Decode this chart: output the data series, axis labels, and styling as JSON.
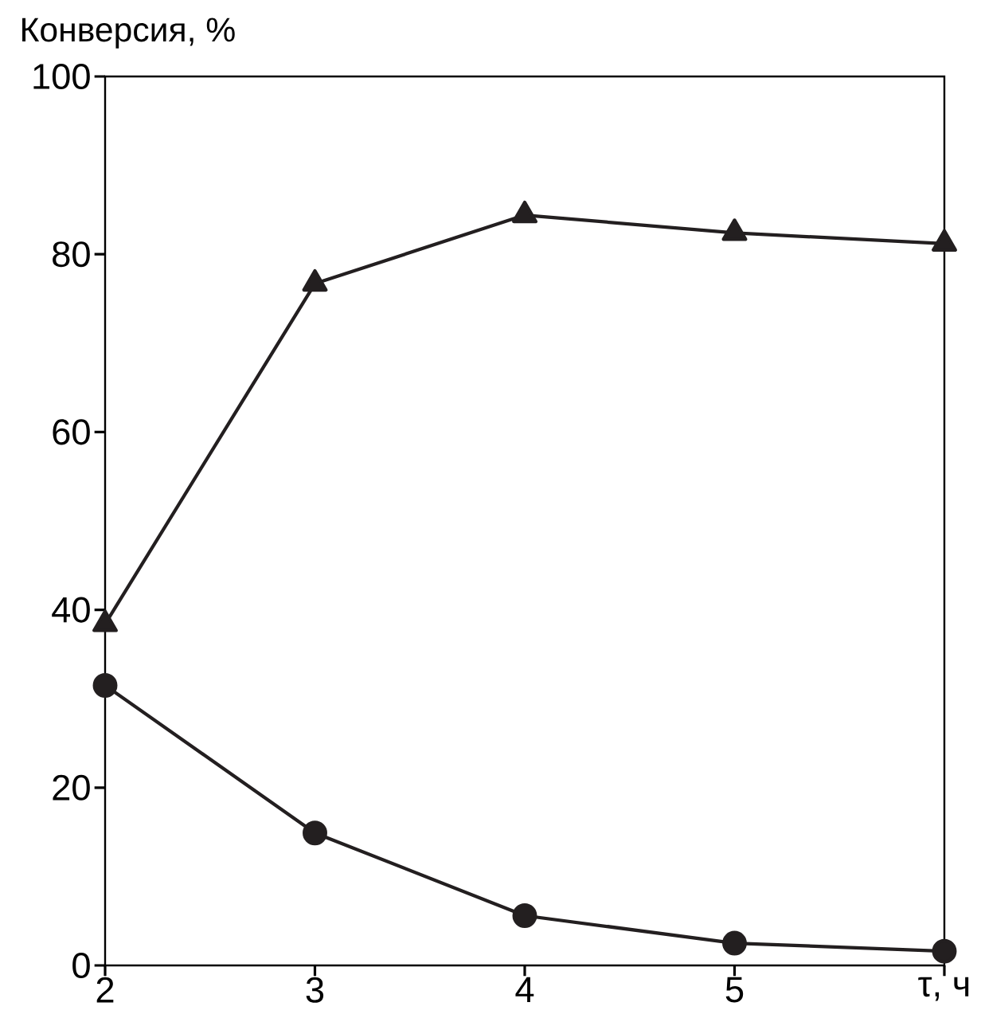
{
  "chart_data": {
    "type": "line",
    "ylabel": "Конверсия, %",
    "x": [
      2,
      3,
      4,
      5,
      6
    ],
    "series": [
      {
        "color": "#231f20",
        "marker": "triangle",
        "values": [
          38.4,
          76.7,
          84.4,
          82.4,
          81.2
        ]
      },
      {
        "color": "#231f20",
        "marker": "circle",
        "values": [
          31.5,
          14.9,
          5.6,
          2.5,
          1.6
        ]
      }
    ],
    "xlim": [
      2,
      6
    ],
    "ylim": [
      0,
      100
    ],
    "xticks": [
      2,
      3,
      4,
      5,
      {
        "value": 6,
        "label": "τ, ч"
      }
    ],
    "yticks": [
      0,
      20,
      40,
      60,
      80,
      100
    ],
    "grid": false,
    "line_style": "solid"
  }
}
